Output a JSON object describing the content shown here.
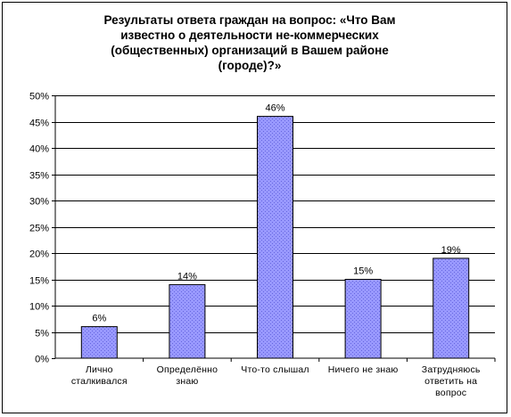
{
  "chart_data": {
    "type": "bar",
    "title": "Результаты ответа граждан на вопрос: «Что Вам\nизвестно о деятельности не-коммерческих\n(общественных) организаций в Вашем районе\n(городе)?»",
    "categories": [
      [
        "Лично",
        "сталкивался"
      ],
      [
        "Определённо",
        "знаю"
      ],
      [
        "Что-то слышал"
      ],
      [
        "Ничего не знаю"
      ],
      [
        "Затрудняюсь",
        "ответить на",
        "вопрос"
      ]
    ],
    "values": [
      6,
      14,
      46,
      15,
      19
    ],
    "data_labels": [
      "6%",
      "14%",
      "46%",
      "15%",
      "19%"
    ],
    "ylim": [
      0,
      50
    ],
    "y_ticks": [
      "0%",
      "5%",
      "10%",
      "15%",
      "20%",
      "25%",
      "30%",
      "35%",
      "40%",
      "45%",
      "50%"
    ],
    "grid": true,
    "legend": "none",
    "colors": {
      "bar_fill": "#9999ff",
      "bar_stroke": "#000000",
      "grid": "#000000"
    }
  }
}
